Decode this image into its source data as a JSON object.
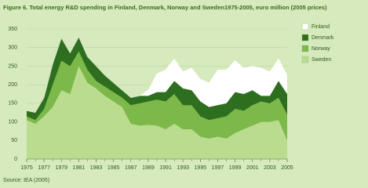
{
  "chart_data": {
    "type": "stacked_area",
    "title": "Figure 6. Total energy R&D spending in Finland, Denmark, Norway and Sweden1975-2005, euro million (2005 prices)",
    "source": "Source: IEA (2005)",
    "x": [
      1975,
      1976,
      1977,
      1978,
      1979,
      1980,
      1981,
      1982,
      1983,
      1984,
      1985,
      1986,
      1987,
      1988,
      1989,
      1990,
      1991,
      1992,
      1993,
      1994,
      1995,
      1996,
      1997,
      1998,
      1999,
      2000,
      2001,
      2002,
      2003,
      2004,
      2005
    ],
    "series": [
      {
        "name": "Sweden",
        "color": "#b9dc8f",
        "values": [
          105,
          95,
          115,
          140,
          185,
          175,
          250,
          205,
          190,
          170,
          155,
          140,
          95,
          90,
          92,
          90,
          80,
          95,
          80,
          80,
          60,
          55,
          60,
          55,
          70,
          80,
          90,
          100,
          100,
          105,
          50
        ]
      },
      {
        "name": "Norway",
        "color": "#7cb84a",
        "values": [
          10,
          10,
          20,
          60,
          80,
          75,
          40,
          35,
          20,
          25,
          25,
          25,
          50,
          60,
          63,
          70,
          75,
          80,
          65,
          65,
          55,
          50,
          50,
          60,
          65,
          50,
          55,
          55,
          50,
          60,
          70
        ]
      },
      {
        "name": "Denmark",
        "color": "#2e6e1f",
        "values": [
          15,
          20,
          30,
          55,
          60,
          35,
          38,
          35,
          40,
          30,
          25,
          20,
          20,
          20,
          15,
          20,
          25,
          35,
          45,
          40,
          40,
          35,
          35,
          35,
          45,
          45,
          40,
          15,
          20,
          45,
          55
        ]
      },
      {
        "name": "Finland",
        "color": "#ffffff",
        "values": [
          0,
          0,
          0,
          0,
          0,
          0,
          0,
          0,
          0,
          0,
          0,
          0,
          0,
          0,
          15,
          50,
          60,
          60,
          45,
          60,
          60,
          65,
          95,
          90,
          85,
          70,
          65,
          75,
          65,
          60,
          50
        ]
      }
    ],
    "xlim": [
      1975,
      2005
    ],
    "xticks": [
      1975,
      1977,
      1979,
      1981,
      1983,
      1985,
      1987,
      1989,
      1991,
      1993,
      1995,
      1997,
      1999,
      2001,
      2003,
      2005
    ],
    "ylim": [
      0,
      350
    ],
    "yticks": [
      0,
      50,
      100,
      150,
      200,
      250,
      300,
      350
    ],
    "grid": true
  }
}
